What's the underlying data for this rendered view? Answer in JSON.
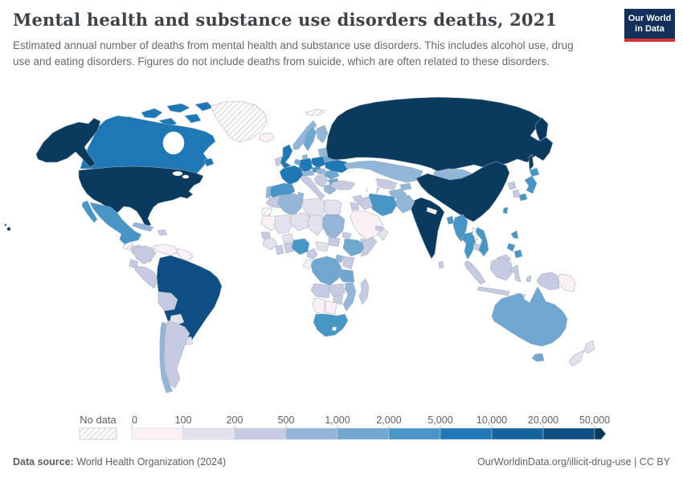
{
  "header": {
    "title": "Mental health and substance use disorders deaths, 2021",
    "subtitle": "Estimated annual number of deaths from mental health and substance use disorders. This includes alcohol use, drug use and eating disorders. Figures do not include deaths from suicide, which are often related to these disorders.",
    "logo": {
      "line1": "Our World",
      "line2": "in Data",
      "bg_color": "#12305a",
      "accent_color": "#d7342e"
    }
  },
  "footer": {
    "source_label": "Data source:",
    "source_value": " World Health Organization (2024)",
    "link": "OurWorldinData.org/illicit-drug-use",
    "separator": " | ",
    "license": "CC BY"
  },
  "chart_data": {
    "type": "choropleth-map",
    "title": "Mental health and substance use disorders deaths, 2021",
    "unit": "deaths per year",
    "no_data_label": "No data",
    "legend_ticks": [
      "0",
      "100",
      "200",
      "500",
      "1,000",
      "2,000",
      "5,000",
      "10,000",
      "20,000",
      "50,000"
    ],
    "bands": [
      {
        "range": "0–100",
        "color": "#fbf0f6"
      },
      {
        "range": "100–200",
        "color": "#e4e1ee"
      },
      {
        "range": "200–500",
        "color": "#c7cbe1"
      },
      {
        "range": "500–1,000",
        "color": "#92b5d8"
      },
      {
        "range": "1,000–2,000",
        "color": "#6fa7d0"
      },
      {
        "range": "2,000–5,000",
        "color": "#4896c6"
      },
      {
        "range": "5,000–10,000",
        "color": "#1d78b5"
      },
      {
        "range": "10,000–20,000",
        "color": "#14639e"
      },
      {
        "range": "20,000–50,000",
        "color": "#0f4e82"
      },
      {
        "range": "50,000+",
        "color": "#0a3a5e"
      }
    ],
    "countries": {
      "united-states": 9,
      "canada": 6,
      "greenland": -1,
      "mexico": 5,
      "guatemala": -1,
      "honduras-nicaragua": 2,
      "costa-rica-panama": 2,
      "cuba": 3,
      "hispaniola": 2,
      "colombia": 2,
      "venezuela": 0,
      "guyanas": 0,
      "ecuador": 2,
      "peru": 2,
      "brazil": 8,
      "bolivia": 2,
      "paraguay": 1,
      "uruguay": 1,
      "argentina": 2,
      "chile": 3,
      "iceland": 0,
      "ireland": 2,
      "united-kingdom": 6,
      "norway": 3,
      "sweden": 4,
      "finland": 3,
      "denmark": 3,
      "netherlands": 4,
      "germany": 6,
      "france": 6,
      "spain": 5,
      "portugal": 3,
      "italy": 2,
      "switzerland-austria": 3,
      "czechia": 5,
      "poland": 6,
      "baltics": 3,
      "belarus": 4,
      "ukraine": 6,
      "romania": 4,
      "hungary-slovakia": 3,
      "balkans": 2,
      "bulgaria": 4,
      "greece": 3,
      "turkey": 2,
      "svalbard": -1,
      "russia": 9,
      "kazakhstan": 3,
      "uzbekistan": 2,
      "turkmenistan": 2,
      "kyrgyzstan-tajikistan": 3,
      "mongolia": 3,
      "china": 9,
      "taiwan": 5,
      "north-korea": 2,
      "south-korea": 2,
      "japan": 5,
      "india": 9,
      "pakistan": 3,
      "afghanistan": 3,
      "nepal": 0,
      "bangladesh": 5,
      "sri-lanka": 2,
      "myanmar": 5,
      "thailand": 5,
      "laos": -1,
      "cambodia": 2,
      "vietnam": 5,
      "malaysia": 2,
      "philippines": 5,
      "indonesia": 2,
      "papua-new-guinea": 0,
      "iran": 5,
      "iraq": 2,
      "syria": 2,
      "jordan-israel": 2,
      "saudi-arabia": 0,
      "yemen": 2,
      "oman": 1,
      "uae-qatar": 2,
      "morocco": 2,
      "western-sahara": -1,
      "algeria": 3,
      "tunisia": 3,
      "libya": 1,
      "egypt": 1,
      "mauritania": 0,
      "mali": 1,
      "niger": 1,
      "chad": 1,
      "sudan": 3,
      "eritrea": 2,
      "senegal": 2,
      "guinea-cluster": 1,
      "burkina-faso": 1,
      "ivory-coast": 2,
      "ghana": 2,
      "nigeria": 5,
      "cameroon": 2,
      "central-african-republic": 1,
      "south-sudan": 2,
      "ethiopia": 4,
      "somalia": 2,
      "kenya": 2,
      "uganda": 3,
      "dr-congo": 4,
      "gabon-congo": 0,
      "tanzania": 4,
      "angola": 2,
      "zambia": 2,
      "malawi": 2,
      "zimbabwe": 2,
      "mozambique": 3,
      "namibia": 0,
      "botswana": 0,
      "south-africa": 5,
      "lesotho": 0,
      "madagascar": 2,
      "australia": 4,
      "new-zealand": 1
    }
  }
}
